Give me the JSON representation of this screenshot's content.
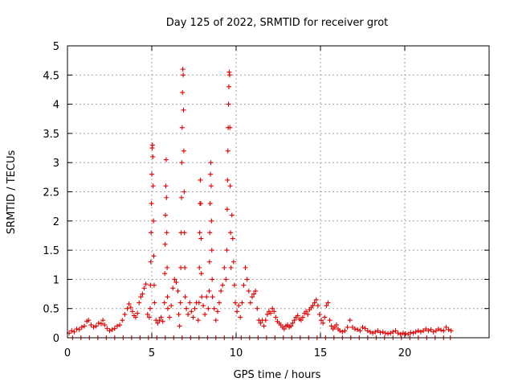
{
  "chart_data": {
    "type": "scatter",
    "title": "Day 125 of 2022, SRMTID for receiver grot",
    "xlabel": "GPS time / hours",
    "ylabel": "SRMTID / TECUs",
    "xlim": [
      0,
      25
    ],
    "ylim": [
      0,
      5
    ],
    "xticks": [
      0,
      5,
      10,
      15,
      20
    ],
    "xtick_labels": [
      "0",
      "5",
      "10",
      "15",
      "20"
    ],
    "yticks": [
      0,
      0.5,
      1,
      1.5,
      2,
      2.5,
      3,
      3.5,
      4,
      4.5,
      5
    ],
    "ytick_labels": [
      "0",
      "0.5",
      "1",
      "1.5",
      "2",
      "2.5",
      "3",
      "3.5",
      "4",
      "4.5",
      "5"
    ],
    "grid": true,
    "marker": "+",
    "color": "#e00000",
    "series": [
      {
        "name": "SRMTID",
        "points": [
          [
            0.1,
            0.08
          ],
          [
            0.25,
            0.12
          ],
          [
            0.4,
            0.1
          ],
          [
            0.55,
            0.15
          ],
          [
            0.7,
            0.14
          ],
          [
            0.85,
            0.18
          ],
          [
            1.0,
            0.2
          ],
          [
            1.15,
            0.28
          ],
          [
            1.25,
            0.3
          ],
          [
            1.4,
            0.22
          ],
          [
            1.55,
            0.18
          ],
          [
            1.7,
            0.2
          ],
          [
            1.85,
            0.25
          ],
          [
            2.0,
            0.24
          ],
          [
            2.1,
            0.3
          ],
          [
            2.2,
            0.22
          ],
          [
            2.35,
            0.16
          ],
          [
            2.5,
            0.12
          ],
          [
            2.65,
            0.14
          ],
          [
            2.8,
            0.16
          ],
          [
            2.95,
            0.2
          ],
          [
            3.1,
            0.22
          ],
          [
            3.25,
            0.3
          ],
          [
            3.4,
            0.4
          ],
          [
            3.55,
            0.5
          ],
          [
            3.65,
            0.58
          ],
          [
            3.75,
            0.52
          ],
          [
            3.85,
            0.45
          ],
          [
            3.95,
            0.38
          ],
          [
            4.05,
            0.35
          ],
          [
            4.15,
            0.42
          ],
          [
            4.25,
            0.6
          ],
          [
            4.35,
            0.7
          ],
          [
            4.45,
            0.75
          ],
          [
            4.55,
            0.85
          ],
          [
            4.65,
            0.92
          ],
          [
            4.75,
            0.4
          ],
          [
            4.85,
            0.35
          ],
          [
            4.9,
            0.5
          ],
          [
            4.92,
            0.9
          ],
          [
            4.94,
            1.3
          ],
          [
            4.96,
            1.8
          ],
          [
            4.98,
            2.3
          ],
          [
            5.0,
            2.8
          ],
          [
            5.02,
            3.25
          ],
          [
            5.04,
            3.3
          ],
          [
            5.06,
            3.1
          ],
          [
            5.08,
            2.6
          ],
          [
            5.1,
            2.0
          ],
          [
            5.12,
            1.4
          ],
          [
            5.14,
            0.9
          ],
          [
            5.16,
            0.6
          ],
          [
            5.25,
            0.3
          ],
          [
            5.35,
            0.25
          ],
          [
            5.45,
            0.3
          ],
          [
            5.55,
            0.35
          ],
          [
            5.65,
            0.28
          ],
          [
            5.75,
            0.6
          ],
          [
            5.77,
            1.1
          ],
          [
            5.79,
            1.6
          ],
          [
            5.81,
            2.1
          ],
          [
            5.83,
            2.6
          ],
          [
            5.85,
            3.05
          ],
          [
            5.87,
            2.4
          ],
          [
            5.89,
            1.8
          ],
          [
            5.91,
            1.2
          ],
          [
            5.93,
            0.7
          ],
          [
            5.95,
            0.5
          ],
          [
            6.05,
            0.35
          ],
          [
            6.15,
            0.55
          ],
          [
            6.25,
            0.85
          ],
          [
            6.35,
            1.0
          ],
          [
            6.45,
            0.95
          ],
          [
            6.55,
            0.8
          ],
          [
            6.6,
            0.4
          ],
          [
            6.65,
            0.2
          ],
          [
            6.7,
            0.6
          ],
          [
            6.72,
            1.2
          ],
          [
            6.74,
            1.8
          ],
          [
            6.76,
            2.4
          ],
          [
            6.78,
            3.0
          ],
          [
            6.8,
            3.6
          ],
          [
            6.82,
            4.2
          ],
          [
            6.84,
            4.6
          ],
          [
            6.86,
            4.5
          ],
          [
            6.88,
            3.9
          ],
          [
            6.9,
            3.2
          ],
          [
            6.92,
            2.5
          ],
          [
            6.94,
            1.8
          ],
          [
            6.96,
            1.2
          ],
          [
            6.98,
            0.7
          ],
          [
            7.05,
            0.5
          ],
          [
            7.15,
            0.4
          ],
          [
            7.25,
            0.6
          ],
          [
            7.35,
            0.45
          ],
          [
            7.45,
            0.35
          ],
          [
            7.55,
            0.5
          ],
          [
            7.65,
            0.6
          ],
          [
            7.75,
            0.3
          ],
          [
            7.8,
            0.6
          ],
          [
            7.82,
            1.2
          ],
          [
            7.84,
            1.8
          ],
          [
            7.86,
            2.3
          ],
          [
            7.88,
            2.7
          ],
          [
            7.9,
            2.3
          ],
          [
            7.92,
            1.7
          ],
          [
            7.94,
            1.1
          ],
          [
            7.96,
            0.7
          ],
          [
            8.05,
            0.55
          ],
          [
            8.15,
            0.4
          ],
          [
            8.25,
            0.7
          ],
          [
            8.35,
            0.5
          ],
          [
            8.4,
            0.8
          ],
          [
            8.42,
            1.3
          ],
          [
            8.44,
            1.8
          ],
          [
            8.46,
            2.3
          ],
          [
            8.48,
            2.8
          ],
          [
            8.5,
            3.0
          ],
          [
            8.52,
            2.6
          ],
          [
            8.54,
            2.0
          ],
          [
            8.56,
            1.5
          ],
          [
            8.58,
            1.0
          ],
          [
            8.6,
            0.7
          ],
          [
            8.7,
            0.5
          ],
          [
            8.8,
            0.3
          ],
          [
            8.9,
            0.45
          ],
          [
            9.0,
            0.6
          ],
          [
            9.1,
            0.8
          ],
          [
            9.2,
            0.9
          ],
          [
            9.3,
            1.2
          ],
          [
            9.4,
            1.0
          ],
          [
            9.45,
            1.5
          ],
          [
            9.47,
            2.2
          ],
          [
            9.49,
            2.7
          ],
          [
            9.51,
            3.2
          ],
          [
            9.53,
            3.6
          ],
          [
            9.55,
            4.0
          ],
          [
            9.57,
            4.3
          ],
          [
            9.59,
            4.55
          ],
          [
            9.61,
            4.5
          ],
          [
            9.63,
            3.6
          ],
          [
            9.65,
            2.6
          ],
          [
            9.67,
            1.8
          ],
          [
            9.7,
            1.2
          ],
          [
            9.75,
            2.1
          ],
          [
            9.8,
            1.7
          ],
          [
            9.85,
            1.3
          ],
          [
            9.9,
            0.9
          ],
          [
            9.95,
            0.6
          ],
          [
            10.05,
            0.45
          ],
          [
            10.15,
            0.55
          ],
          [
            10.25,
            0.35
          ],
          [
            10.35,
            0.6
          ],
          [
            10.45,
            0.9
          ],
          [
            10.55,
            1.2
          ],
          [
            10.65,
            1.0
          ],
          [
            10.75,
            0.8
          ],
          [
            10.85,
            0.6
          ],
          [
            10.95,
            0.7
          ],
          [
            11.05,
            0.75
          ],
          [
            11.15,
            0.8
          ],
          [
            11.25,
            0.5
          ],
          [
            11.35,
            0.3
          ],
          [
            11.45,
            0.25
          ],
          [
            11.55,
            0.3
          ],
          [
            11.65,
            0.2
          ],
          [
            11.75,
            0.3
          ],
          [
            11.85,
            0.4
          ],
          [
            11.95,
            0.45
          ],
          [
            12.05,
            0.42
          ],
          [
            12.15,
            0.5
          ],
          [
            12.25,
            0.45
          ],
          [
            12.35,
            0.35
          ],
          [
            12.45,
            0.28
          ],
          [
            12.55,
            0.25
          ],
          [
            12.65,
            0.22
          ],
          [
            12.75,
            0.18
          ],
          [
            12.85,
            0.15
          ],
          [
            12.95,
            0.2
          ],
          [
            13.05,
            0.22
          ],
          [
            13.15,
            0.18
          ],
          [
            13.25,
            0.2
          ],
          [
            13.35,
            0.25
          ],
          [
            13.45,
            0.3
          ],
          [
            13.55,
            0.35
          ],
          [
            13.65,
            0.38
          ],
          [
            13.75,
            0.32
          ],
          [
            13.85,
            0.3
          ],
          [
            13.95,
            0.35
          ],
          [
            14.05,
            0.42
          ],
          [
            14.15,
            0.45
          ],
          [
            14.25,
            0.4
          ],
          [
            14.35,
            0.48
          ],
          [
            14.45,
            0.52
          ],
          [
            14.55,
            0.55
          ],
          [
            14.65,
            0.6
          ],
          [
            14.75,
            0.65
          ],
          [
            14.85,
            0.55
          ],
          [
            14.95,
            0.4
          ],
          [
            15.05,
            0.3
          ],
          [
            15.15,
            0.25
          ],
          [
            15.25,
            0.35
          ],
          [
            15.35,
            0.55
          ],
          [
            15.45,
            0.6
          ],
          [
            15.55,
            0.3
          ],
          [
            15.65,
            0.2
          ],
          [
            15.75,
            0.15
          ],
          [
            15.85,
            0.18
          ],
          [
            15.95,
            0.22
          ],
          [
            16.05,
            0.15
          ],
          [
            16.15,
            0.12
          ],
          [
            16.3,
            0.1
          ],
          [
            16.45,
            0.12
          ],
          [
            16.6,
            0.18
          ],
          [
            16.75,
            0.3
          ],
          [
            16.9,
            0.18
          ],
          [
            17.05,
            0.15
          ],
          [
            17.2,
            0.14
          ],
          [
            17.35,
            0.12
          ],
          [
            17.5,
            0.18
          ],
          [
            17.65,
            0.16
          ],
          [
            17.8,
            0.12
          ],
          [
            17.95,
            0.1
          ],
          [
            18.1,
            0.08
          ],
          [
            18.25,
            0.1
          ],
          [
            18.4,
            0.12
          ],
          [
            18.55,
            0.09
          ],
          [
            18.7,
            0.1
          ],
          [
            18.85,
            0.08
          ],
          [
            19.0,
            0.07
          ],
          [
            19.15,
            0.08
          ],
          [
            19.3,
            0.1
          ],
          [
            19.45,
            0.12
          ],
          [
            19.6,
            0.08
          ],
          [
            19.75,
            0.06
          ],
          [
            19.9,
            0.08
          ],
          [
            20.05,
            0.07
          ],
          [
            20.2,
            0.06
          ],
          [
            20.35,
            0.09
          ],
          [
            20.5,
            0.08
          ],
          [
            20.65,
            0.1
          ],
          [
            20.8,
            0.12
          ],
          [
            20.95,
            0.1
          ],
          [
            21.1,
            0.12
          ],
          [
            21.25,
            0.15
          ],
          [
            21.4,
            0.12
          ],
          [
            21.55,
            0.14
          ],
          [
            21.7,
            0.1
          ],
          [
            21.85,
            0.12
          ],
          [
            22.0,
            0.15
          ],
          [
            22.15,
            0.13
          ],
          [
            22.3,
            0.12
          ],
          [
            22.45,
            0.18
          ],
          [
            22.6,
            0.14
          ],
          [
            22.75,
            0.12
          ],
          [
            0.3,
            0.0
          ],
          [
            0.8,
            0.0
          ],
          [
            1.3,
            0.0
          ],
          [
            1.8,
            0.0
          ],
          [
            2.3,
            0.0
          ],
          [
            2.8,
            0.0
          ],
          [
            3.3,
            0.0
          ],
          [
            3.8,
            0.0
          ],
          [
            4.3,
            0.0
          ],
          [
            4.8,
            0.0
          ],
          [
            5.3,
            0.0
          ],
          [
            5.8,
            0.0
          ],
          [
            6.3,
            0.0
          ],
          [
            6.8,
            0.0
          ],
          [
            7.3,
            0.0
          ],
          [
            7.8,
            0.0
          ],
          [
            8.3,
            0.0
          ],
          [
            8.8,
            0.0
          ],
          [
            9.3,
            0.0
          ],
          [
            9.8,
            0.0
          ],
          [
            10.3,
            0.0
          ],
          [
            10.8,
            0.0
          ],
          [
            11.3,
            0.0
          ],
          [
            11.8,
            0.0
          ],
          [
            12.3,
            0.0
          ],
          [
            12.8,
            0.0
          ],
          [
            13.3,
            0.0
          ],
          [
            13.8,
            0.0
          ],
          [
            14.3,
            0.0
          ],
          [
            14.8,
            0.0
          ],
          [
            15.3,
            0.0
          ],
          [
            15.8,
            0.0
          ],
          [
            16.3,
            0.0
          ],
          [
            16.8,
            0.0
          ],
          [
            17.3,
            0.0
          ],
          [
            17.8,
            0.0
          ],
          [
            18.3,
            0.0
          ],
          [
            18.8,
            0.0
          ],
          [
            19.3,
            0.0
          ],
          [
            19.8,
            0.0
          ],
          [
            20.3,
            0.0
          ],
          [
            20.8,
            0.0
          ],
          [
            21.3,
            0.0
          ],
          [
            21.8,
            0.0
          ],
          [
            22.3,
            0.0
          ],
          [
            22.7,
            0.0
          ]
        ]
      }
    ]
  }
}
